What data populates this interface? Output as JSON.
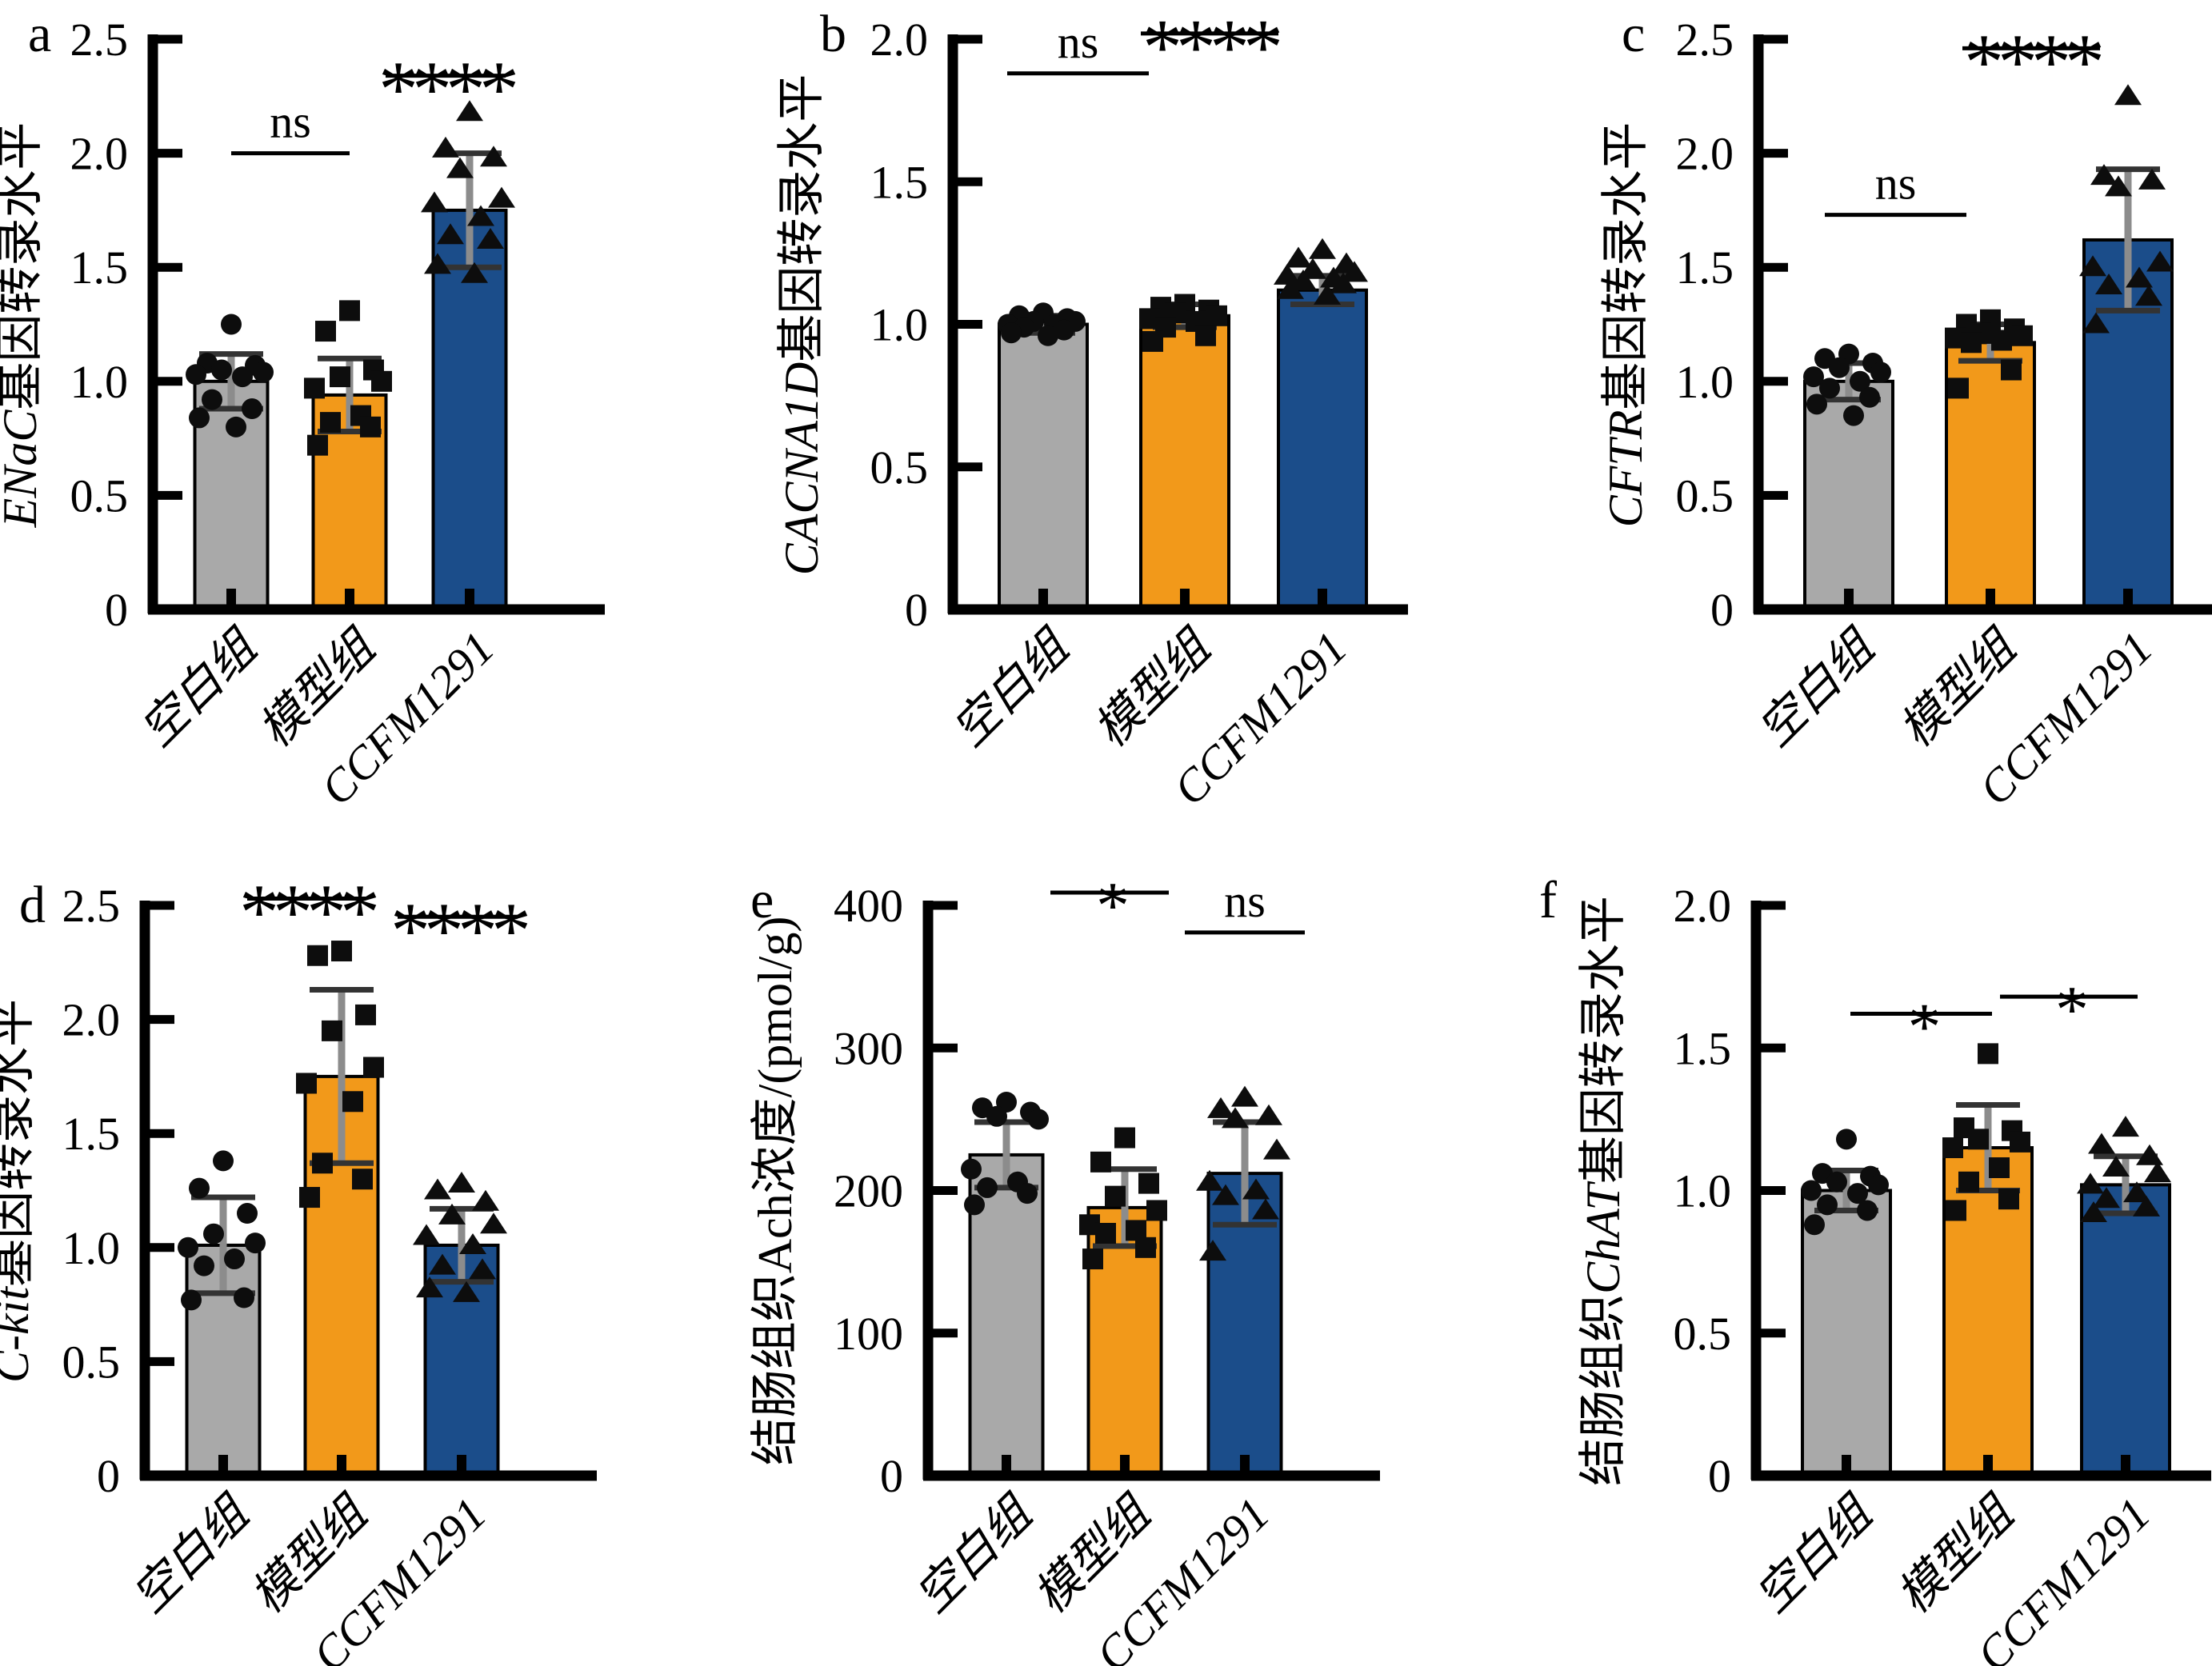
{
  "figure": {
    "background": "#ffffff",
    "description_groups": [
      "空白组",
      "模型组",
      "CCFM1291"
    ]
  },
  "colors": {
    "bar_gray": "#a9a9a9",
    "bar_orange": "#f2991a",
    "bar_blue": "#1b4d8a",
    "bar_outline": "#000000",
    "marker": "#0d0d0d",
    "error_line": "#8c8c8c",
    "error_cap": "#333333",
    "axis": "#000000",
    "sig_gray_star": "#3f3f3f"
  },
  "groups": [
    {
      "label": "空白组",
      "color": "#a9a9a9",
      "marker": "circle"
    },
    {
      "label": "模型组",
      "color": "#f2991a",
      "marker": "square"
    },
    {
      "label": "CCFM1291",
      "color": "#1b4d8a",
      "marker": "triangle"
    }
  ],
  "chart_data": [
    {
      "panel_letter": "a",
      "type": "bar",
      "ylabel_segments": [
        {
          "text": "ENaC",
          "italic": true
        },
        {
          "text": "基因转录水平",
          "italic": false
        }
      ],
      "ylim": [
        0,
        2.5
      ],
      "ytick_labels": [
        "0",
        "0.5",
        "1.0",
        "1.5",
        "2.0",
        "2.5"
      ],
      "categories": [
        "空白组",
        "模型组",
        "CCFM1291"
      ],
      "values": [
        1.0,
        0.94,
        1.75
      ],
      "sd": [
        0.12,
        0.16,
        0.25
      ],
      "points": [
        [
          1.25,
          1.08,
          1.07,
          1.05,
          1.04,
          1.03,
          1.02,
          0.92,
          0.88,
          0.84,
          0.8
        ],
        [
          1.31,
          1.22,
          1.05,
          1.02,
          1.0,
          0.97,
          0.85,
          0.82,
          0.8,
          0.72
        ],
        [
          2.18,
          2.02,
          1.98,
          1.93,
          1.8,
          1.78,
          1.72,
          1.64,
          1.62,
          1.51,
          1.47
        ]
      ],
      "significance": [
        {
          "groups": [
            0,
            1
          ],
          "label": "ns",
          "y": 2.0,
          "dx": 0,
          "color": "#000000"
        },
        {
          "groups": [
            1,
            2
          ],
          "label": "****",
          "y": 2.34,
          "dx": 45,
          "color": "#000000"
        }
      ]
    },
    {
      "panel_letter": "b",
      "type": "bar",
      "ylabel_segments": [
        {
          "text": "CACNA1D",
          "italic": true
        },
        {
          "text": "基因转录水平",
          "italic": false
        }
      ],
      "ylim": [
        0,
        2.0
      ],
      "ytick_labels": [
        "0",
        "0.5",
        "1.0",
        "1.5",
        "2.0"
      ],
      "categories": [
        "空白组",
        "模型组",
        "CCFM1291"
      ],
      "values": [
        1.0,
        1.03,
        1.12
      ],
      "sd": [
        0.03,
        0.04,
        0.05
      ],
      "points": [
        [
          1.04,
          1.03,
          1.02,
          1.01,
          1.01,
          1.0,
          1.0,
          0.99,
          0.98,
          0.97,
          0.96
        ],
        [
          1.07,
          1.06,
          1.05,
          1.04,
          1.03,
          1.02,
          1.01,
          0.99,
          0.96,
          0.94
        ],
        [
          1.26,
          1.23,
          1.21,
          1.19,
          1.18,
          1.17,
          1.16,
          1.15,
          1.14,
          1.12,
          1.1
        ]
      ],
      "significance": [
        {
          "groups": [
            0,
            1
          ],
          "label": "ns",
          "y": 1.88,
          "dx": -45,
          "color": "#000000"
        },
        {
          "groups": [
            1,
            2
          ],
          "label": "****",
          "y": 2.02,
          "dx": -55,
          "color": "#000000"
        }
      ]
    },
    {
      "panel_letter": "c",
      "type": "bar",
      "ylabel_segments": [
        {
          "text": "CFTR",
          "italic": true
        },
        {
          "text": "基因转录水平",
          "italic": false
        }
      ],
      "ylim": [
        0,
        2.5
      ],
      "ytick_labels": [
        "0",
        "0.5",
        "1.0",
        "1.5",
        "2.0",
        "2.5"
      ],
      "categories": [
        "空白组",
        "模型组",
        "CCFM1291"
      ],
      "values": [
        1.0,
        1.17,
        1.62
      ],
      "sd": [
        0.08,
        0.08,
        0.31
      ],
      "points": [
        [
          1.12,
          1.1,
          1.08,
          1.06,
          1.04,
          1.02,
          1.0,
          0.97,
          0.93,
          0.9,
          0.85
        ],
        [
          1.27,
          1.25,
          1.23,
          1.21,
          1.2,
          1.19,
          1.18,
          1.17,
          1.05,
          0.97
        ],
        [
          2.25,
          1.9,
          1.88,
          1.85,
          1.52,
          1.5,
          1.45,
          1.42,
          1.37,
          1.25
        ]
      ],
      "significance": [
        {
          "groups": [
            0,
            1
          ],
          "label": "ns",
          "y": 1.73,
          "dx": -30,
          "color": "#000000"
        },
        {
          "groups": [
            1,
            2
          ],
          "label": "****",
          "y": 2.46,
          "dx": -35,
          "color": "#000000"
        }
      ]
    },
    {
      "panel_letter": "d",
      "type": "bar",
      "ylabel_segments": [
        {
          "text": "C-kit",
          "italic": true
        },
        {
          "text": "基因转录水平",
          "italic": false
        }
      ],
      "ylim": [
        0,
        2.5
      ],
      "ytick_labels": [
        "0",
        "0.5",
        "1.0",
        "1.5",
        "2.0",
        "2.5"
      ],
      "categories": [
        "空白组",
        "模型组",
        "CCFM1291"
      ],
      "values": [
        1.01,
        1.75,
        1.01
      ],
      "sd": [
        0.21,
        0.38,
        0.16
      ],
      "points": [
        [
          1.38,
          1.26,
          1.15,
          1.06,
          1.02,
          1.0,
          0.95,
          0.92,
          0.78,
          0.77
        ],
        [
          2.3,
          2.28,
          2.02,
          1.95,
          1.79,
          1.72,
          1.64,
          1.37,
          1.3,
          1.22
        ],
        [
          1.28,
          1.25,
          1.2,
          1.14,
          1.1,
          1.05,
          1.01,
          0.92,
          0.9,
          0.82,
          0.8
        ]
      ],
      "significance": [
        {
          "groups": [
            0,
            1
          ],
          "label": "****",
          "y": 2.53,
          "dx": 30,
          "color": "#000000"
        },
        {
          "groups": [
            1,
            2
          ],
          "label": "****",
          "y": 2.45,
          "dx": 70,
          "color": "#000000"
        }
      ]
    },
    {
      "panel_letter": "e",
      "type": "bar",
      "ylabel_segments": [
        {
          "text": "结肠组织Ach浓度/(pmol/g)",
          "italic": false
        }
      ],
      "ylim": [
        0,
        400
      ],
      "ytick_labels": [
        "0",
        "100",
        "200",
        "300",
        "400"
      ],
      "categories": [
        "空白组",
        "模型组",
        "CCFM1291"
      ],
      "values": [
        225,
        188,
        212
      ],
      "sd": [
        23,
        27,
        36
      ],
      "points": [
        [
          262,
          258,
          255,
          252,
          250,
          215,
          206,
          202,
          198,
          190
        ],
        [
          237,
          220,
          205,
          196,
          186,
          176,
          172,
          170,
          160,
          152
        ],
        [
          265,
          257,
          252,
          250,
          228,
          206,
          200,
          196,
          186,
          157
        ]
      ],
      "significance": [
        {
          "groups": [
            0,
            1
          ],
          "label": "*",
          "y": 409,
          "dx": 55,
          "color": "#3f3f3f"
        },
        {
          "groups": [
            1,
            2
          ],
          "label": "ns",
          "y": 381,
          "dx": 75,
          "color": "#000000"
        }
      ]
    },
    {
      "panel_letter": "f",
      "type": "bar",
      "ylabel_segments": [
        {
          "text": "结肠组织",
          "italic": false
        },
        {
          "text": "ChAT",
          "italic": true
        },
        {
          "text": "基因转录水平",
          "italic": false
        }
      ],
      "ylim": [
        0,
        2.0
      ],
      "ytick_labels": [
        "0",
        "0.5",
        "1.0",
        "1.5",
        "2.0"
      ],
      "categories": [
        "空白组",
        "模型组",
        "CCFM1291"
      ],
      "values": [
        1.0,
        1.15,
        1.02
      ],
      "sd": [
        0.07,
        0.15,
        0.1
      ],
      "points": [
        [
          1.18,
          1.06,
          1.05,
          1.03,
          1.02,
          1.0,
          0.99,
          0.95,
          0.93,
          0.88
        ],
        [
          1.48,
          1.22,
          1.21,
          1.18,
          1.17,
          1.15,
          1.08,
          1.03,
          0.97,
          0.93
        ],
        [
          1.22,
          1.16,
          1.12,
          1.08,
          1.06,
          1.02,
          0.99,
          0.97,
          0.94,
          0.92
        ]
      ],
      "significance": [
        {
          "groups": [
            0,
            1
          ],
          "label": "*",
          "y": 1.62,
          "dx": 5,
          "color": "#000000"
        },
        {
          "groups": [
            1,
            2
          ],
          "label": "*",
          "y": 1.68,
          "dx": 15,
          "color": "#000000"
        }
      ]
    }
  ]
}
